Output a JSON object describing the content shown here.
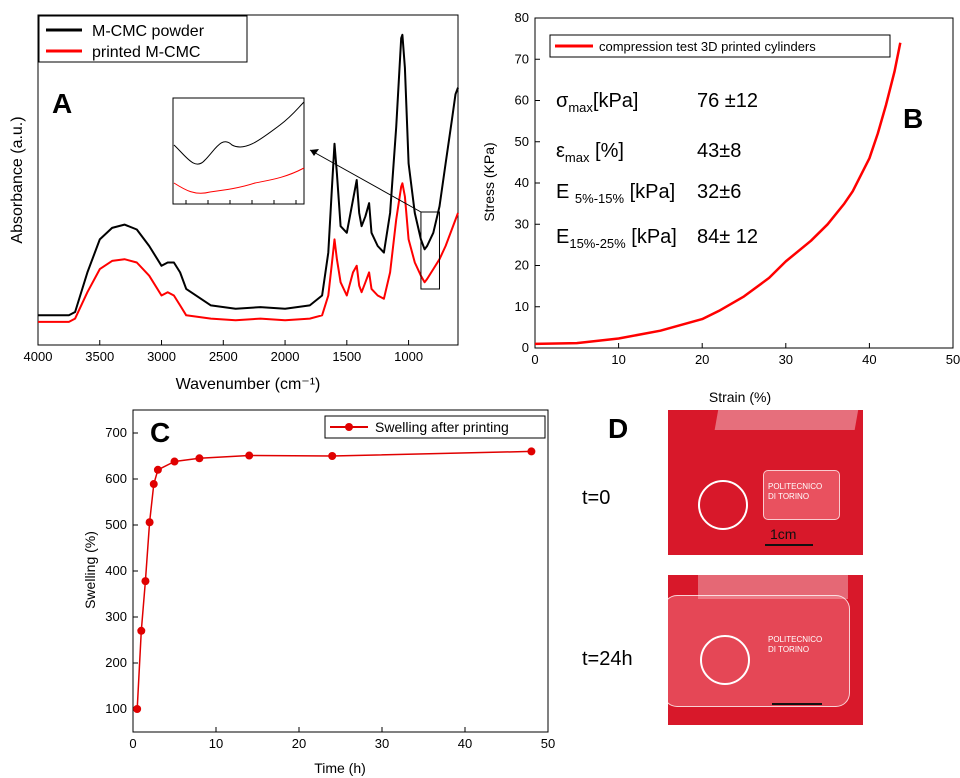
{
  "panels": {
    "A": {
      "letter": "A"
    },
    "B": {
      "letter": "B"
    },
    "C": {
      "letter": "C"
    },
    "D": {
      "letter": "D"
    }
  },
  "chart_data": [
    {
      "id": "A",
      "type": "line",
      "xlabel": "Wavenumber (cm⁻¹)",
      "ylabel": "Absorbance (a.u.)",
      "xlim": [
        4000,
        600
      ],
      "x_reversed": true,
      "ylim": [
        0,
        1
      ],
      "xticks": [
        4000,
        3500,
        3000,
        2500,
        2000,
        1500,
        1000
      ],
      "legend_position": "top-left",
      "series": [
        {
          "name": "M-CMC powder",
          "color": "#000000",
          "x": [
            4000,
            3750,
            3700,
            3600,
            3500,
            3400,
            3300,
            3200,
            3100,
            3000,
            2950,
            2900,
            2850,
            2800,
            2600,
            2400,
            2200,
            2000,
            1800,
            1700,
            1650,
            1620,
            1600,
            1580,
            1550,
            1500,
            1450,
            1420,
            1400,
            1380,
            1350,
            1320,
            1300,
            1250,
            1200,
            1150,
            1100,
            1060,
            1050,
            1030,
            1000,
            950,
            900,
            870,
            850,
            800,
            750,
            700,
            650,
            620,
            600
          ],
          "y": [
            0.09,
            0.09,
            0.1,
            0.22,
            0.32,
            0.355,
            0.365,
            0.35,
            0.3,
            0.24,
            0.25,
            0.25,
            0.22,
            0.17,
            0.12,
            0.11,
            0.115,
            0.11,
            0.12,
            0.15,
            0.28,
            0.48,
            0.61,
            0.52,
            0.36,
            0.34,
            0.44,
            0.5,
            0.4,
            0.36,
            0.39,
            0.43,
            0.34,
            0.3,
            0.28,
            0.4,
            0.66,
            0.93,
            0.94,
            0.84,
            0.55,
            0.4,
            0.32,
            0.29,
            0.3,
            0.34,
            0.42,
            0.55,
            0.68,
            0.76,
            0.78
          ]
        },
        {
          "name": "printed M-CMC",
          "color": "#ff0000",
          "x": [
            4000,
            3750,
            3700,
            3600,
            3500,
            3400,
            3300,
            3200,
            3100,
            3000,
            2950,
            2900,
            2850,
            2800,
            2600,
            2400,
            2200,
            2000,
            1800,
            1700,
            1650,
            1620,
            1600,
            1580,
            1550,
            1500,
            1450,
            1420,
            1400,
            1380,
            1350,
            1320,
            1300,
            1250,
            1200,
            1150,
            1100,
            1060,
            1050,
            1030,
            1000,
            950,
            900,
            870,
            850,
            800,
            750,
            700,
            650,
            620,
            600
          ],
          "y": [
            0.07,
            0.07,
            0.08,
            0.16,
            0.23,
            0.255,
            0.26,
            0.25,
            0.21,
            0.15,
            0.16,
            0.15,
            0.12,
            0.09,
            0.08,
            0.075,
            0.08,
            0.075,
            0.08,
            0.09,
            0.15,
            0.25,
            0.32,
            0.26,
            0.19,
            0.15,
            0.22,
            0.24,
            0.18,
            0.16,
            0.19,
            0.22,
            0.17,
            0.15,
            0.14,
            0.22,
            0.38,
            0.48,
            0.49,
            0.45,
            0.32,
            0.25,
            0.21,
            0.19,
            0.2,
            0.23,
            0.26,
            0.3,
            0.35,
            0.38,
            0.4
          ]
        }
      ],
      "inset": {
        "region": [
          900,
          750
        ]
      }
    },
    {
      "id": "B",
      "type": "line",
      "xlabel": "Strain (%)",
      "ylabel": "Stress (KPa)",
      "xlim": [
        0,
        50
      ],
      "ylim": [
        0,
        80
      ],
      "xticks": [
        0,
        10,
        20,
        30,
        40,
        50
      ],
      "yticks": [
        0,
        10,
        20,
        30,
        40,
        50,
        60,
        70,
        80
      ],
      "legend_position": "top",
      "series": [
        {
          "name": "compression test 3D printed cylinders",
          "color": "#ff0000",
          "x": [
            0,
            5,
            10,
            15,
            20,
            22,
            25,
            28,
            30,
            33,
            35,
            37,
            38,
            40,
            41,
            42,
            43,
            43.7
          ],
          "y": [
            1,
            1.2,
            2.3,
            4.2,
            7,
            9,
            12.5,
            17,
            21,
            26,
            30,
            35,
            38,
            46,
            52,
            59,
            67,
            74
          ]
        }
      ],
      "annotations": [
        {
          "label": "σ",
          "sub": "max",
          "unit": "[kPa]",
          "value": "76 ±12"
        },
        {
          "label": "ε",
          "sub": "max",
          "unit": " [%]",
          "value": "43±8"
        },
        {
          "label": "E ",
          "sub": "5%-15%",
          "unit": " [kPa]",
          "value": "32±6"
        },
        {
          "label": "E",
          "sub": "15%-25%",
          "unit": " [kPa]",
          "value": "84± 12"
        }
      ]
    },
    {
      "id": "C",
      "type": "line",
      "xlabel": "Time (h)",
      "ylabel": "Swelling (%)",
      "xlim": [
        0,
        50
      ],
      "ylim": [
        50,
        750
      ],
      "xticks": [
        0,
        10,
        20,
        30,
        40,
        50
      ],
      "yticks": [
        100,
        200,
        300,
        400,
        500,
        600,
        700
      ],
      "legend_position": "top-right",
      "series": [
        {
          "name": "Swelling after printing",
          "color": "#e00000",
          "x": [
            0.5,
            1,
            1.5,
            2,
            2.5,
            3,
            5,
            8,
            14,
            24,
            48
          ],
          "y": [
            100,
            270,
            378,
            506,
            589,
            620,
            638,
            645,
            651,
            650,
            660
          ]
        }
      ]
    }
  ],
  "photos": {
    "labels": [
      "t=0",
      "t=24h"
    ],
    "logo_text": [
      "POLITECNICO",
      "DI TORINO"
    ],
    "scale_label": "1cm"
  }
}
